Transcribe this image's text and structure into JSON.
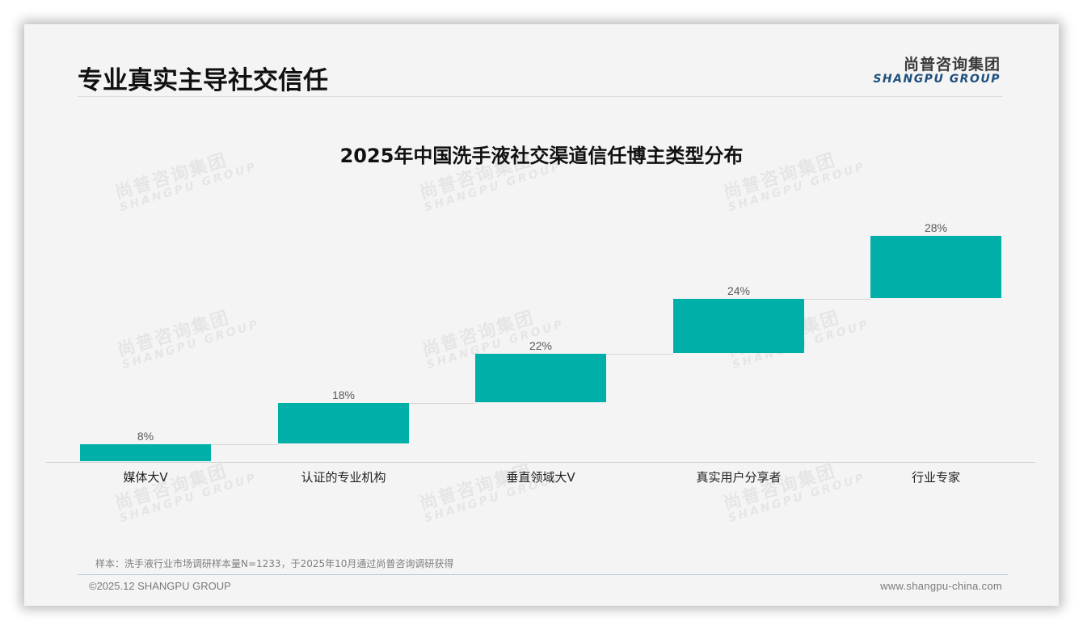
{
  "header": {
    "page_title": "专业真实主导社交信任",
    "logo_cn": "尚普咨询集团",
    "logo_en": "SHANGPU GROUP"
  },
  "watermark": {
    "cn": "尚普咨询集团",
    "en": "SHANGPU GROUP"
  },
  "chart_data": {
    "type": "bar",
    "subtype": "waterfall-floating",
    "title": "2025年中国洗手液社交渠道信任博主类型分布",
    "categories": [
      "媒体大V",
      "认证的专业机构",
      "垂直领域大V",
      "真实用户分享者",
      "行业专家"
    ],
    "values": [
      8,
      18,
      22,
      24,
      28
    ],
    "value_labels": [
      "8%",
      "18%",
      "22%",
      "24%",
      "28%"
    ],
    "cumulative_start": [
      0,
      8,
      26,
      48,
      72
    ],
    "cumulative_end": [
      8,
      26,
      48,
      72,
      100
    ],
    "xlabel": "",
    "ylabel": "",
    "ylim": [
      0,
      100
    ],
    "grid": false,
    "legend": "none",
    "bar_color": "#00b0a8"
  },
  "footer": {
    "note": "样本：洗手液行业市场调研样本量N=1233，于2025年10月通过尚普咨询调研获得",
    "copyright": "©2025.12 SHANGPU GROUP",
    "website": "www.shangpu-china.com"
  }
}
